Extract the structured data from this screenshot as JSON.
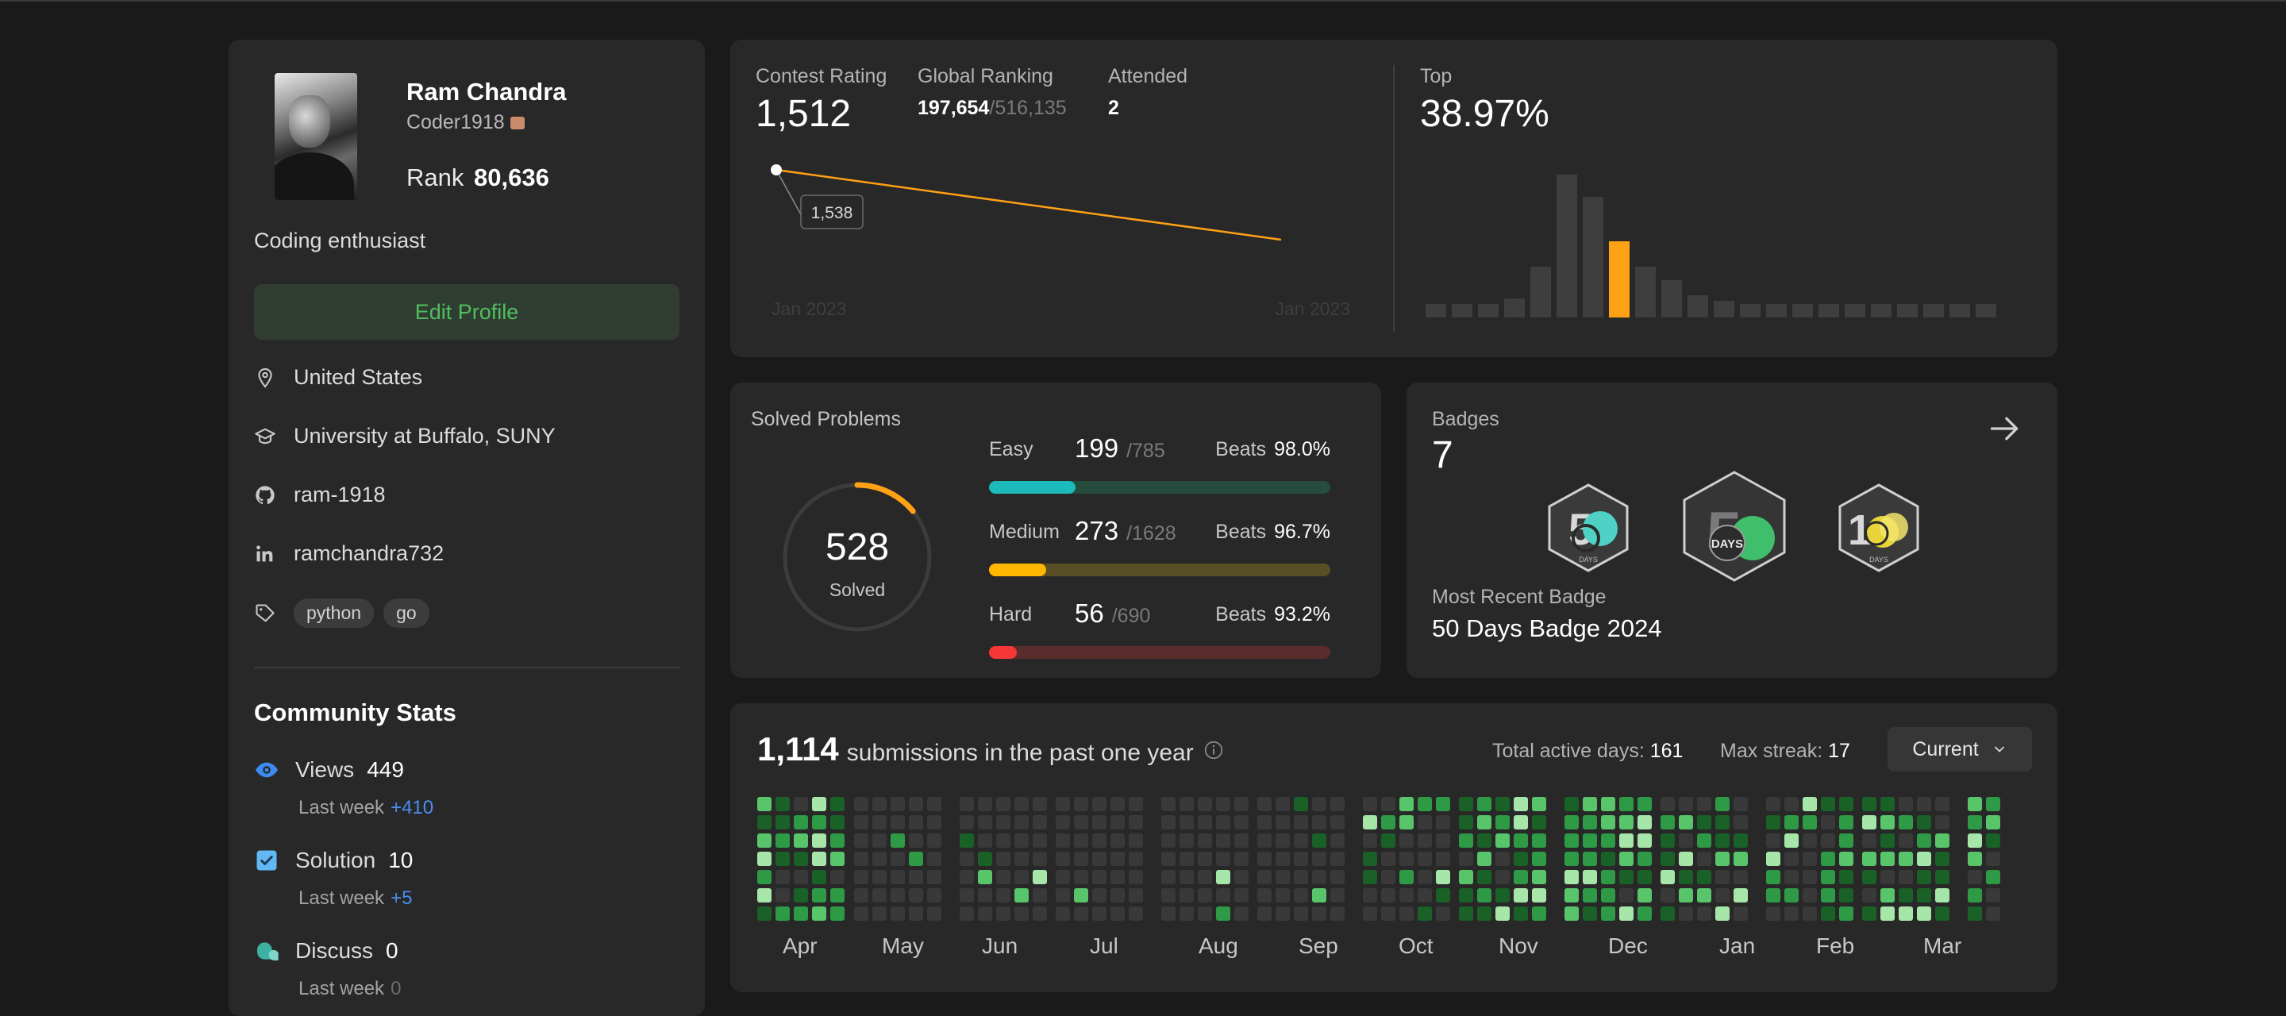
{
  "profile": {
    "name": "Ram Chandra",
    "username": "Coder1918",
    "rank_label": "Rank",
    "rank_value": "80,636",
    "bio": "Coding enthusiast",
    "edit_label": "Edit Profile",
    "location": "United States",
    "school": "University at Buffalo, SUNY",
    "github": "ram-1918",
    "linkedin": "ramchandra732",
    "skills": [
      "python",
      "go"
    ]
  },
  "community": {
    "title": "Community Stats",
    "views": {
      "label": "Views",
      "value": "449",
      "week_label": "Last week",
      "week_delta": "+410"
    },
    "solution": {
      "label": "Solution",
      "value": "10",
      "week_label": "Last week",
      "week_delta": "+5"
    },
    "discuss": {
      "label": "Discuss",
      "value": "0",
      "week_label": "Last week",
      "week_delta": "0"
    }
  },
  "contest": {
    "rating_label": "Contest Rating",
    "rating_value": "1,512",
    "global_label": "Global Ranking",
    "global_value": "197,654",
    "global_total": "/516,135",
    "attended_label": "Attended",
    "attended_value": "2",
    "point_label": "1,538",
    "x_start": "Jan 2023",
    "x_end": "Jan 2023",
    "top_label": "Top",
    "top_value": "38.97%",
    "line_points": [
      1538,
      1512
    ],
    "histogram": [
      0.09,
      0.09,
      0.09,
      0.13,
      0.34,
      1.0,
      0.81,
      0.51,
      0.34,
      0.25,
      0.15,
      0.11,
      0.09,
      0.09,
      0.09,
      0.09,
      0.09,
      0.09,
      0.09,
      0.09,
      0.09,
      0.09
    ],
    "highlight_index": 7,
    "accent": "#ffa116"
  },
  "solved": {
    "title": "Solved Problems",
    "total": "528",
    "total_label": "Solved",
    "ring_fraction": 0.14,
    "easy": {
      "label": "Easy",
      "count": "199",
      "total": "/785",
      "beats_label": "Beats",
      "beats": "98.0%",
      "fraction": 0.2535,
      "color": "#1cbaba",
      "track": "#254c3c"
    },
    "medium": {
      "label": "Medium",
      "count": "273",
      "total": "/1628",
      "beats_label": "Beats",
      "beats": "96.7%",
      "fraction": 0.1677,
      "color": "#ffb800",
      "track": "#594f25"
    },
    "hard": {
      "label": "Hard",
      "count": "56",
      "total": "/690",
      "beats_label": "Beats",
      "beats": "93.2%",
      "fraction": 0.0812,
      "color": "#f63737",
      "track": "#5a2d2d"
    }
  },
  "badges": {
    "title": "Badges",
    "count": "7",
    "recent_label": "Most Recent Badge",
    "recent_name": "50 Days Badge 2024",
    "badge_days_label": "DAYS"
  },
  "submissions": {
    "count": "1,114",
    "label": "submissions in the past one year",
    "active_label": "Total active days:",
    "active_value": "161",
    "streak_label": "Max streak:",
    "streak_value": "17",
    "dropdown_value": "Current",
    "months": [
      "Apr",
      "May",
      "Jun",
      "Jul",
      "Aug",
      "Sep",
      "Oct",
      "Nov",
      "Dec",
      "Jan",
      "Feb",
      "Mar"
    ]
  }
}
